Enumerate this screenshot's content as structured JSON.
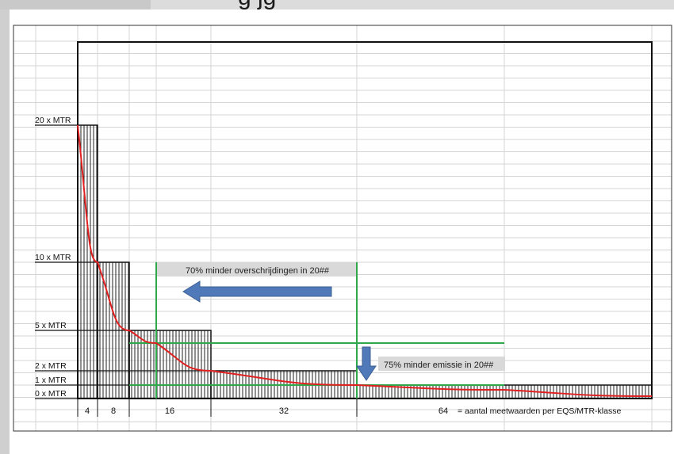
{
  "header": {
    "title_fragment": "g                                              jg"
  },
  "chart_data": {
    "type": "bar",
    "ylabels": [
      "20 x MTR",
      "10 x MTR",
      "5 x MTR",
      "2 x MTR",
      "1 x MTR",
      "0 x MTR"
    ],
    "categories": [
      "4",
      "8",
      "16",
      "32",
      "64"
    ],
    "values": [
      20,
      10,
      5,
      2,
      1
    ],
    "footer_note": "= aantal meetwaarden per EQS/MTR-klasse",
    "annotations": [
      "70% minder overschrijdingen in 20##",
      "75% minder emissie in 20##"
    ],
    "colors": {
      "curve": "#e02020",
      "reference_lines": "#2ea84a",
      "arrow": "#4f79b8",
      "annotation_bg": "#d9d9d9",
      "grid": "#d4d4d4"
    }
  }
}
